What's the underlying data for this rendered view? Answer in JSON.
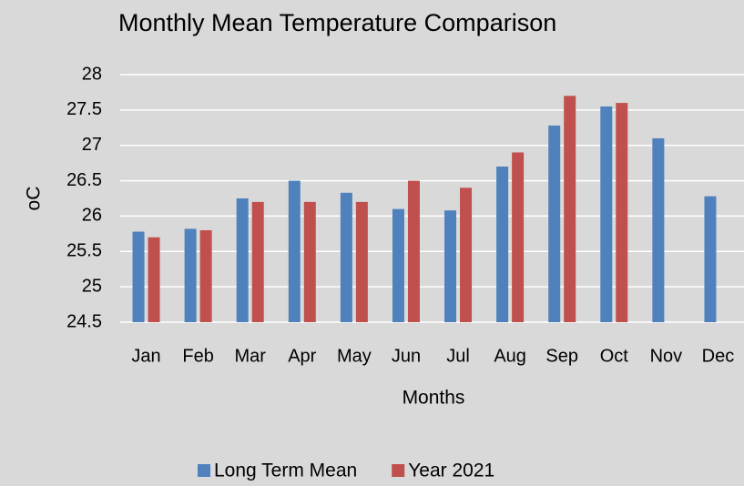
{
  "chart_data": {
    "type": "bar",
    "title": "Monthly Mean Temperature Comparison",
    "x_label": "Months",
    "y_label": "oC",
    "categories": [
      "Jan",
      "Feb",
      "Mar",
      "Apr",
      "May",
      "Jun",
      "Jul",
      "Aug",
      "Sep",
      "Oct",
      "Nov",
      "Dec"
    ],
    "series": [
      {
        "name": "Long Term Mean",
        "color": "#4f81bd",
        "values": [
          25.78,
          25.82,
          26.25,
          26.5,
          26.33,
          26.1,
          26.08,
          26.7,
          27.28,
          27.55,
          27.1,
          26.28
        ]
      },
      {
        "name": "Year 2021",
        "color": "#c0504d",
        "values": [
          25.7,
          25.8,
          26.2,
          26.2,
          26.2,
          26.5,
          26.4,
          26.9,
          27.7,
          27.6,
          null,
          null
        ]
      }
    ],
    "ylim": [
      24.5,
      28
    ],
    "yticks": [
      24.5,
      25,
      25.5,
      26,
      26.5,
      27,
      27.5,
      28
    ],
    "grid": true,
    "legend": "bottom"
  }
}
